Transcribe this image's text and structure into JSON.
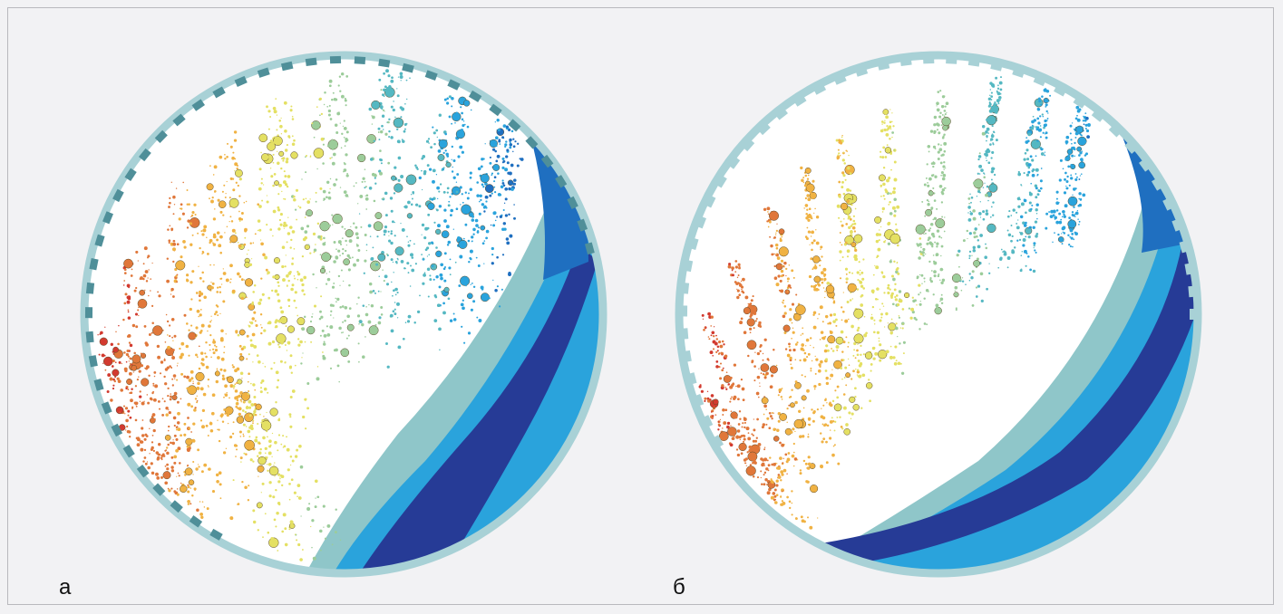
{
  "panels": [
    {
      "label": "а",
      "lifter_count": 42
    },
    {
      "label": "б",
      "lifter_count": 42
    }
  ],
  "colors": {
    "background": "#f2f2f4",
    "frame_border": "#b9b9bd",
    "shell": "#a8d1d6",
    "lifter": "#4f8f99",
    "particle_scale": [
      "#263b96",
      "#1f6fc0",
      "#2aa3dc",
      "#55b8c2",
      "#9ccc9a",
      "#e4e063",
      "#f0b243",
      "#e0773a",
      "#d23a2f"
    ]
  }
}
